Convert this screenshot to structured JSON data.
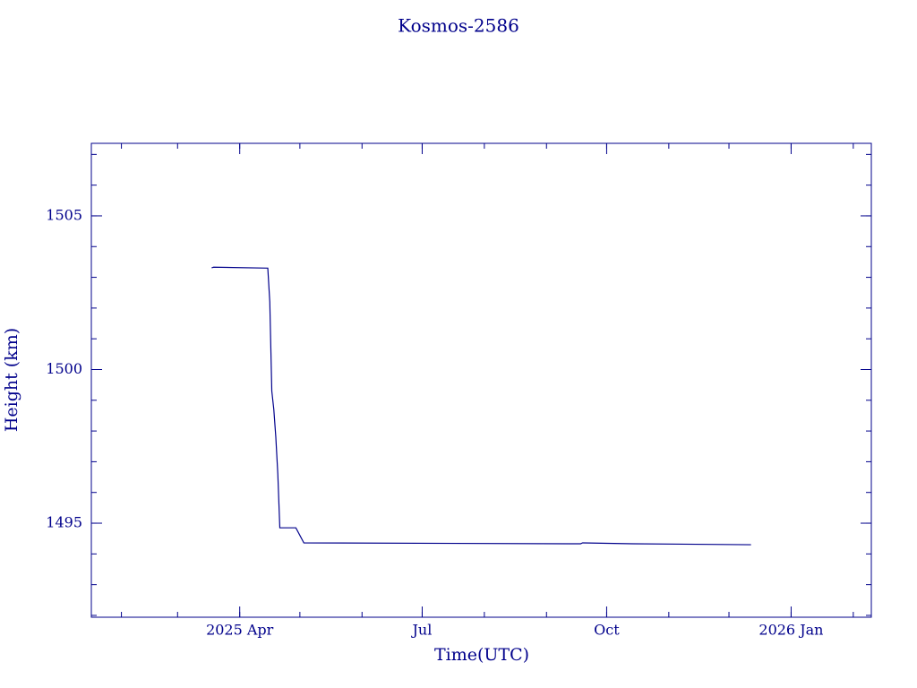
{
  "chart_data": {
    "type": "line",
    "title": "Kosmos-2586",
    "xlabel": "Time(UTC)",
    "ylabel": "Height (km)",
    "x": [
      "2025-03-18",
      "2025-03-19",
      "2025-04-15",
      "2025-04-16",
      "2025-04-17",
      "2025-04-18",
      "2025-04-19",
      "2025-04-20",
      "2025-04-21",
      "2025-04-29",
      "2025-05-03",
      "2025-09-18",
      "2025-09-19",
      "2025-10-14",
      "2025-12-12"
    ],
    "series": [
      {
        "color": "#00008b",
        "values": [
          1503.31,
          1503.33,
          1503.3,
          1502.2,
          1499.3,
          1498.7,
          1497.8,
          1496.6,
          1494.85,
          1494.85,
          1494.36,
          1494.33,
          1494.36,
          1494.33,
          1494.3
        ]
      }
    ],
    "xlim": [
      "2025-01-17",
      "2026-02-10"
    ],
    "xticks": [
      {
        "value": "2025-04-01",
        "label": "2025 Apr"
      },
      {
        "value": "2025-07-01",
        "label": "Jul"
      },
      {
        "value": "2025-10-01",
        "label": "Oct"
      },
      {
        "value": "2026-01-01",
        "label": "2026 Jan"
      }
    ],
    "ylim": [
      1491.94,
      1507.36
    ],
    "yticks": [
      1495,
      1500,
      1505
    ]
  }
}
